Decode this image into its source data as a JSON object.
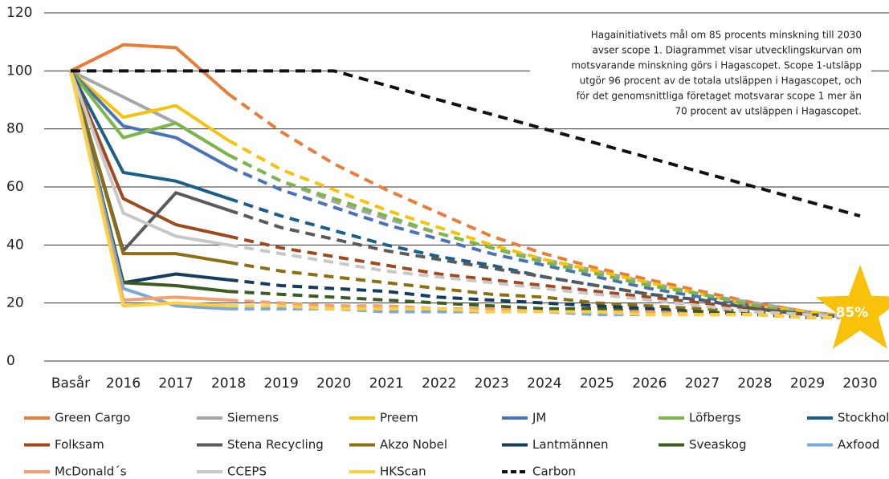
{
  "chart_data": {
    "type": "line",
    "categories": [
      "Basår",
      "2016",
      "2017",
      "2018",
      "2019",
      "2020",
      "2021",
      "2022",
      "2023",
      "2024",
      "2025",
      "2026",
      "2027",
      "2028",
      "2029",
      "2030"
    ],
    "ylim": [
      0,
      120
    ],
    "yticks": [
      0,
      20,
      40,
      60,
      80,
      100,
      120
    ],
    "grid": true,
    "annotation": [
      "Hagainitiativets mål om 85 procents minskning till 2030",
      "avser scope 1. Diagrammet visar utvecklingskurvan om",
      "motsvarande minskning görs i Hagascopet. Scope 1-utsläpp",
      "utgör 96 procent av de totala utsläppen i Hagascopet, och",
      "för det genomsnittliga företaget motsvarar scope 1 mer än",
      "70 procent av utsläppen i Hagascopet."
    ],
    "star_label": "85%",
    "series": [
      {
        "name": "Green Cargo",
        "color": "#e87d3a",
        "values": [
          100,
          109,
          108,
          92,
          79,
          68,
          59,
          51,
          43,
          37,
          32,
          28,
          24,
          20,
          17,
          15
        ]
      },
      {
        "name": "Siemens",
        "color": "#a6a6a6",
        "values": [
          100,
          91,
          82,
          71,
          62,
          55,
          49,
          44,
          39,
          35,
          31,
          27,
          23,
          20,
          17,
          15
        ]
      },
      {
        "name": "Preem",
        "color": "#f9c20a",
        "values": [
          100,
          84,
          88,
          76,
          66,
          59,
          52,
          46,
          40,
          35,
          31,
          27,
          23,
          19,
          17,
          15
        ]
      },
      {
        "name": "JM",
        "color": "#4a72b8",
        "values": [
          100,
          81,
          77,
          67,
          59,
          53,
          47,
          42,
          37,
          33,
          29,
          25,
          22,
          19,
          16,
          15
        ]
      },
      {
        "name": "Löfbergs",
        "color": "#7ab648",
        "values": [
          100,
          77,
          82,
          71,
          62,
          56,
          50,
          44,
          39,
          34,
          30,
          26,
          23,
          19,
          16,
          15
        ]
      },
      {
        "name": "Stockholm Exergi",
        "color": "#1a5f8a",
        "values": [
          100,
          65,
          62,
          56,
          50,
          45,
          40,
          36,
          33,
          29,
          26,
          23,
          21,
          18,
          16,
          15
        ]
      },
      {
        "name": "Folksam",
        "color": "#a0471e",
        "values": [
          100,
          56,
          47,
          43,
          39,
          36,
          33,
          30,
          28,
          26,
          24,
          22,
          20,
          18,
          16,
          15
        ]
      },
      {
        "name": "Stena Recycling",
        "color": "#5a5a5a",
        "values": [
          100,
          38,
          58,
          52,
          46,
          42,
          38,
          35,
          32,
          29,
          26,
          23,
          21,
          18,
          16,
          15
        ]
      },
      {
        "name": "Akzo Nobel",
        "color": "#8b6f12",
        "values": [
          100,
          37,
          37,
          34,
          31,
          29,
          27,
          25,
          23,
          22,
          20,
          19,
          18,
          17,
          16,
          15
        ]
      },
      {
        "name": "Lantmännen",
        "color": "#143c5c",
        "values": [
          100,
          27,
          30,
          28,
          26,
          25,
          24,
          22,
          21,
          20,
          19,
          18,
          17,
          16,
          15,
          15
        ]
      },
      {
        "name": "Sveaskog",
        "color": "#3d5c23",
        "values": [
          100,
          27,
          26,
          24,
          23,
          22,
          21,
          20,
          19,
          18,
          18,
          17,
          17,
          16,
          15,
          15
        ]
      },
      {
        "name": "Axfood",
        "color": "#7aa8d8",
        "values": [
          100,
          25,
          19,
          18,
          18,
          18,
          17,
          17,
          17,
          17,
          16,
          16,
          16,
          16,
          15,
          15
        ]
      },
      {
        "name": "McDonald´s",
        "color": "#f2a070",
        "values": [
          100,
          21,
          22,
          21,
          20,
          19,
          19,
          18,
          18,
          17,
          17,
          17,
          16,
          16,
          15,
          15
        ]
      },
      {
        "name": "CCEPS",
        "color": "#c8c8c8",
        "values": [
          100,
          51,
          43,
          40,
          37,
          34,
          31,
          29,
          27,
          25,
          23,
          21,
          19,
          17,
          16,
          15
        ]
      },
      {
        "name": "HKScan",
        "color": "#fcd040",
        "values": [
          100,
          19,
          20,
          19,
          19,
          18,
          18,
          18,
          17,
          17,
          17,
          16,
          16,
          16,
          15,
          15
        ]
      },
      {
        "name": "Carbon",
        "color": "#111111",
        "dashed": true,
        "values": [
          100,
          100,
          100,
          100,
          100,
          100,
          95,
          90,
          85,
          80,
          75,
          70,
          65,
          60,
          55,
          50
        ]
      }
    ]
  }
}
